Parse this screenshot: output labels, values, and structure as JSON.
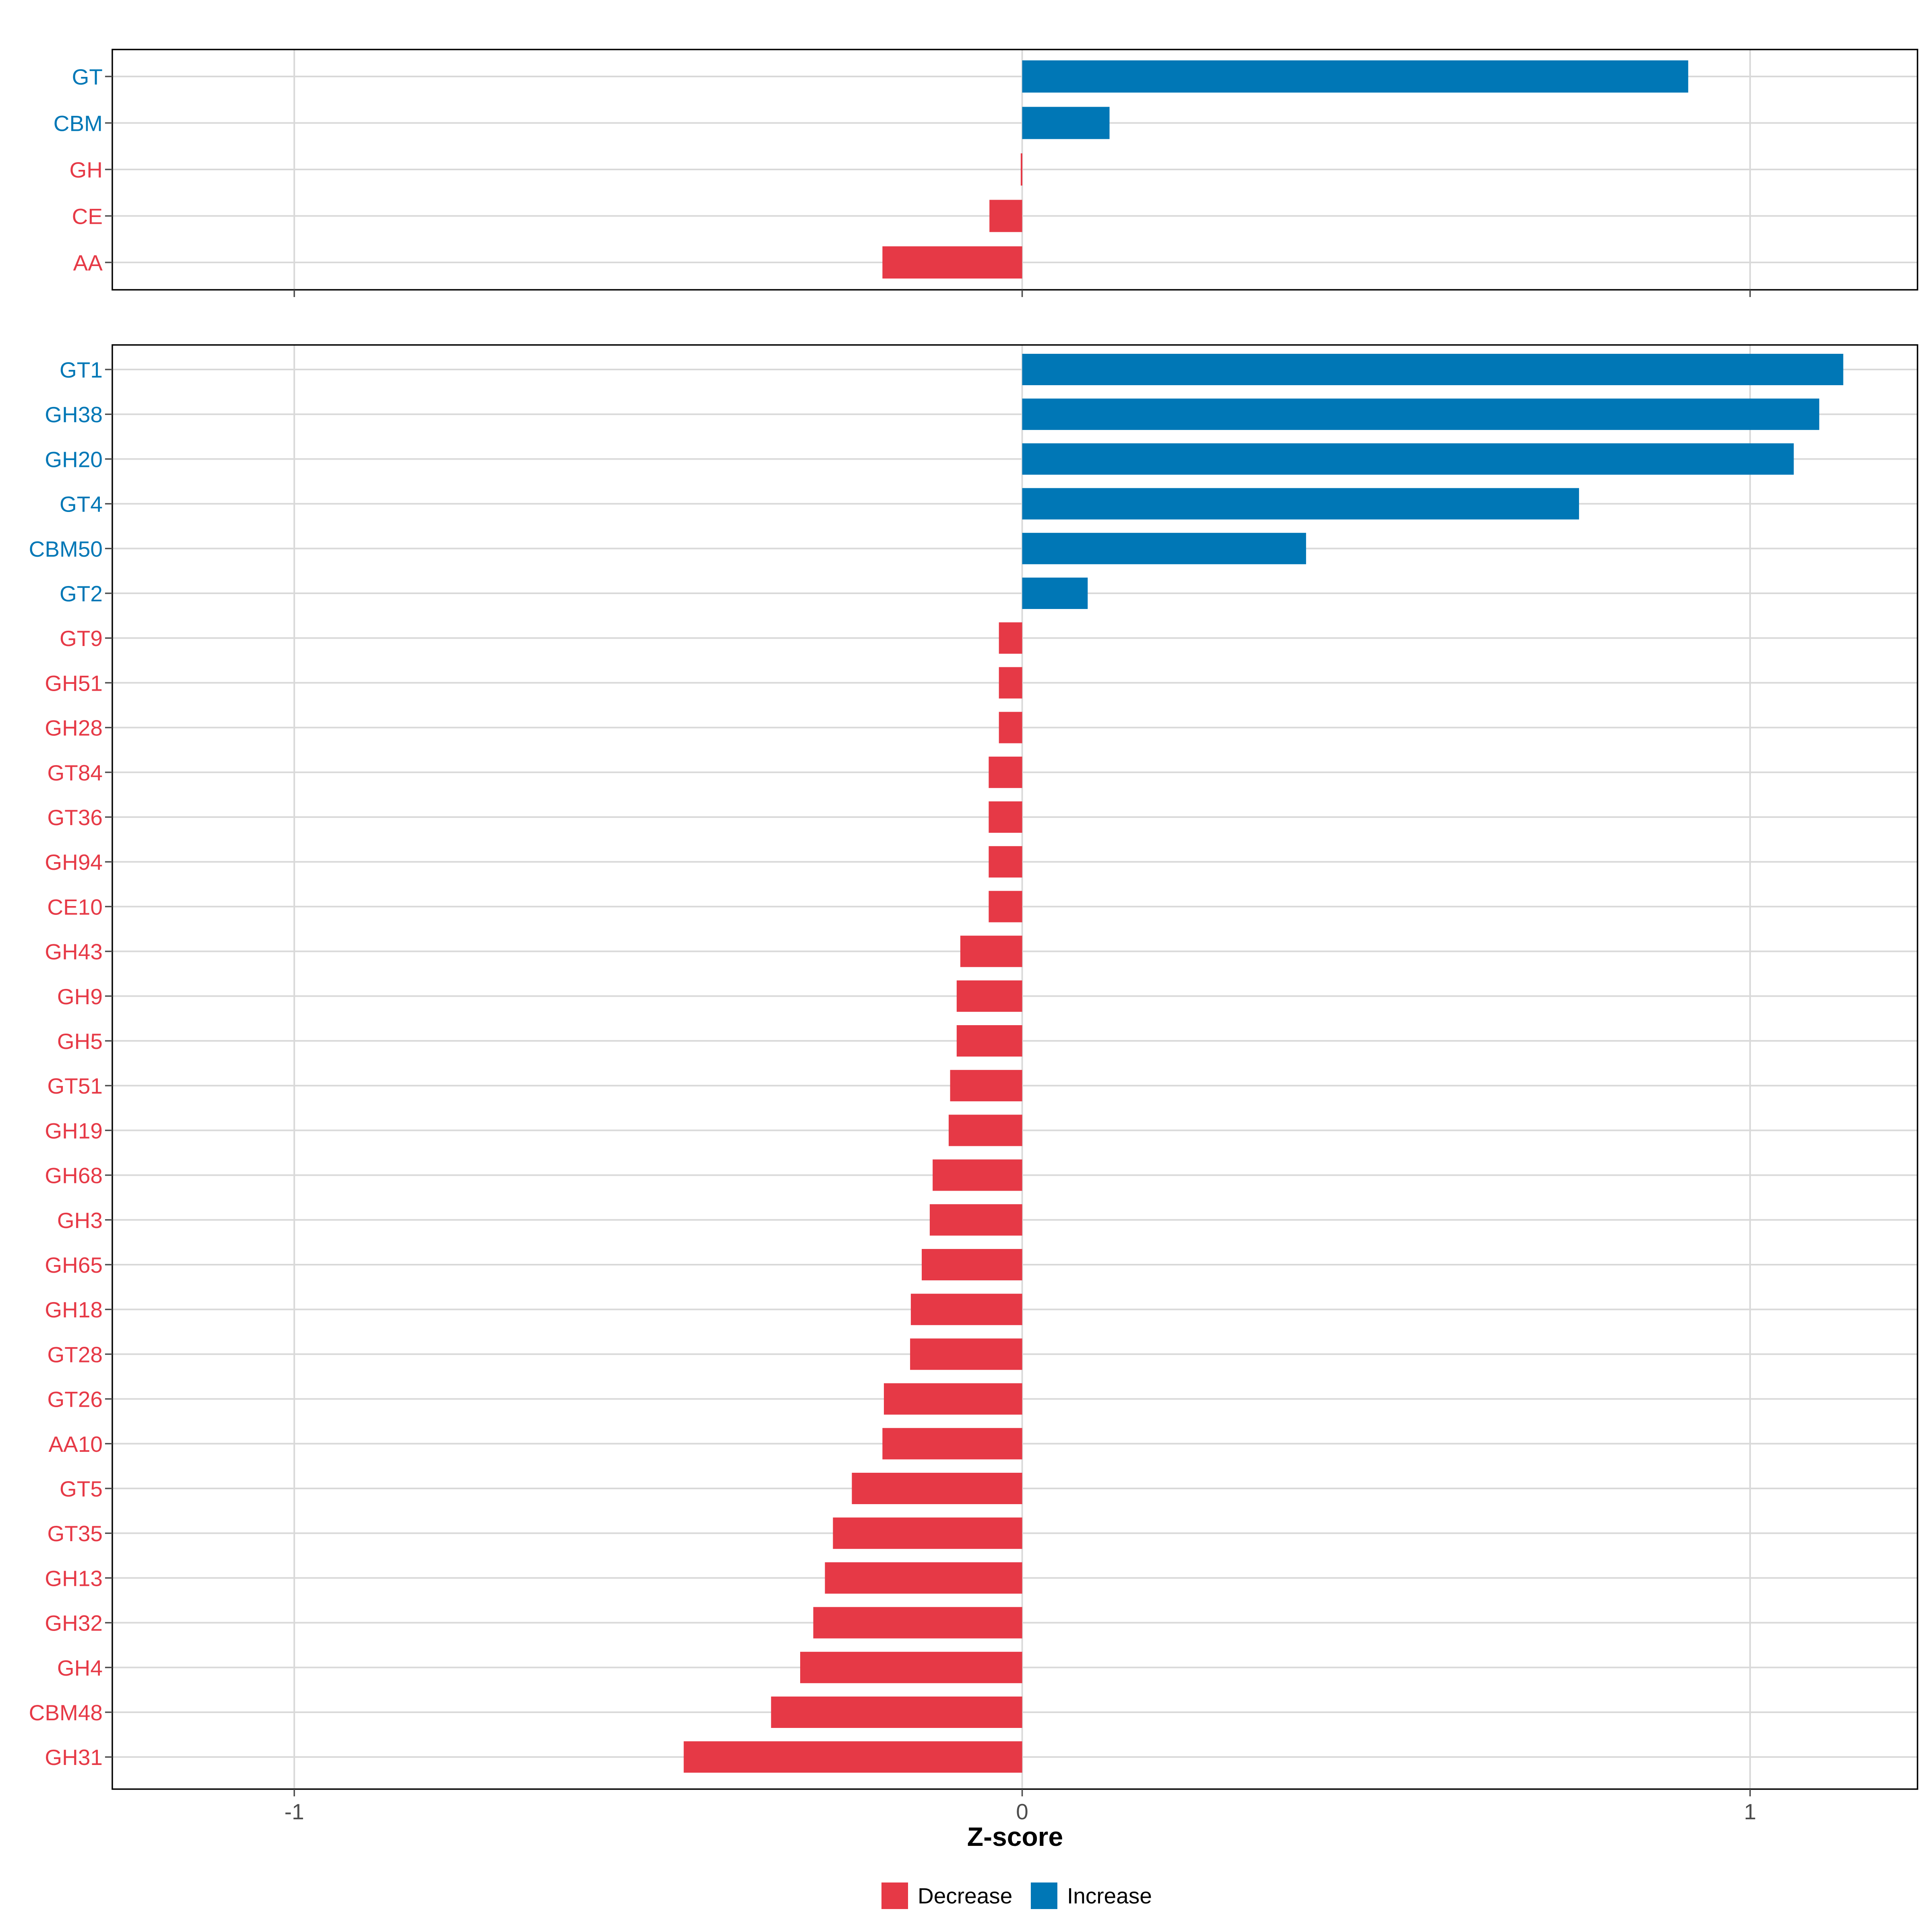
{
  "colors": {
    "decrease": "#E63946",
    "increase": "#0077B6",
    "grid": "#D9D9D9",
    "axis": "#000000",
    "tick_text": "#4D4D4D"
  },
  "chart_data": [
    {
      "type": "bar",
      "orientation": "horizontal",
      "title": "",
      "xlabel": "",
      "ylabel": "",
      "xlim": [
        -1.25,
        1.23
      ],
      "x_ticks": [
        -1,
        0,
        1
      ],
      "x_tick_labels_shown": false,
      "grid": true,
      "categories": [
        "GT",
        "CBM",
        "GH",
        "CE",
        "AA"
      ],
      "values": [
        0.915,
        0.12,
        -0.002,
        -0.045,
        -0.192
      ],
      "groups": [
        "Increase",
        "Increase",
        "Decrease",
        "Decrease",
        "Decrease"
      ]
    },
    {
      "type": "bar",
      "orientation": "horizontal",
      "title": "",
      "xlabel": "Z-score",
      "ylabel": "",
      "xlim": [
        -1.25,
        1.23
      ],
      "x_ticks": [
        -1,
        0,
        1
      ],
      "x_tick_labels": [
        "-1",
        "0",
        "1"
      ],
      "x_tick_labels_shown": true,
      "grid": true,
      "categories": [
        "GT1",
        "GH38",
        "GH20",
        "GT4",
        "CBM50",
        "GT2",
        "GT9",
        "GH51",
        "GH28",
        "GT84",
        "GT36",
        "GH94",
        "CE10",
        "GH43",
        "GH9",
        "GH5",
        "GT51",
        "GH19",
        "GH68",
        "GH3",
        "GH65",
        "GH18",
        "GT28",
        "GT26",
        "AA10",
        "GT5",
        "GT35",
        "GH13",
        "GH32",
        "GH4",
        "CBM48",
        "GH31"
      ],
      "values": [
        1.128,
        1.095,
        1.06,
        0.765,
        0.39,
        0.09,
        -0.032,
        -0.032,
        -0.032,
        -0.046,
        -0.046,
        -0.046,
        -0.046,
        -0.085,
        -0.09,
        -0.09,
        -0.099,
        -0.101,
        -0.123,
        -0.127,
        -0.138,
        -0.153,
        -0.154,
        -0.19,
        -0.192,
        -0.234,
        -0.26,
        -0.271,
        -0.287,
        -0.305,
        -0.345,
        -0.465
      ],
      "groups": [
        "Increase",
        "Increase",
        "Increase",
        "Increase",
        "Increase",
        "Increase",
        "Decrease",
        "Decrease",
        "Decrease",
        "Decrease",
        "Decrease",
        "Decrease",
        "Decrease",
        "Decrease",
        "Decrease",
        "Decrease",
        "Decrease",
        "Decrease",
        "Decrease",
        "Decrease",
        "Decrease",
        "Decrease",
        "Decrease",
        "Decrease",
        "Decrease",
        "Decrease",
        "Decrease",
        "Decrease",
        "Decrease",
        "Decrease",
        "Decrease",
        "Decrease"
      ]
    }
  ],
  "legend": {
    "position": "bottom",
    "items": [
      {
        "label": "Decrease",
        "color_key": "decrease"
      },
      {
        "label": "Increase",
        "color_key": "increase"
      }
    ]
  }
}
